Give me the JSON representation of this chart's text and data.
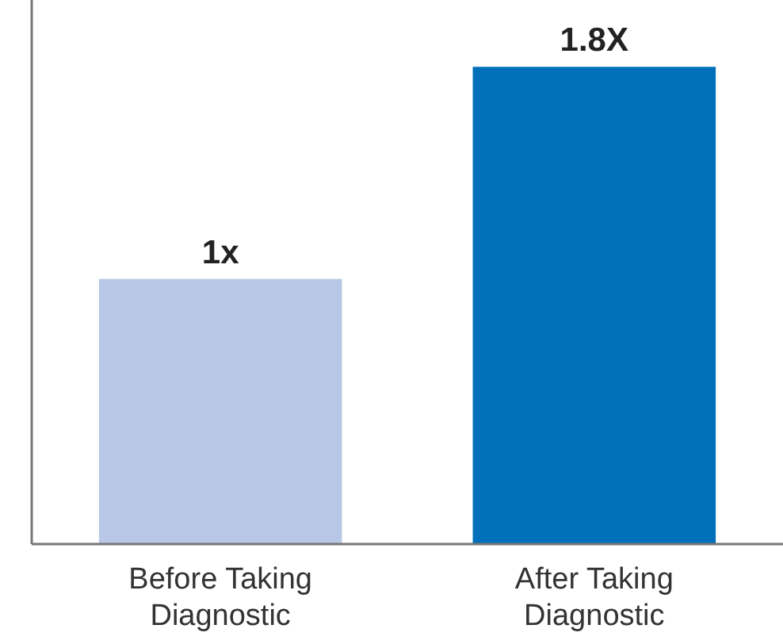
{
  "chart_data": {
    "type": "bar",
    "categories": [
      "Before Taking Diagnostic",
      "After Taking Diagnostic"
    ],
    "values": [
      1,
      1.8
    ],
    "colors": [
      "#b8c7e6",
      "#0070bb"
    ],
    "value_labels": [
      "1x",
      "1.8X"
    ]
  }
}
